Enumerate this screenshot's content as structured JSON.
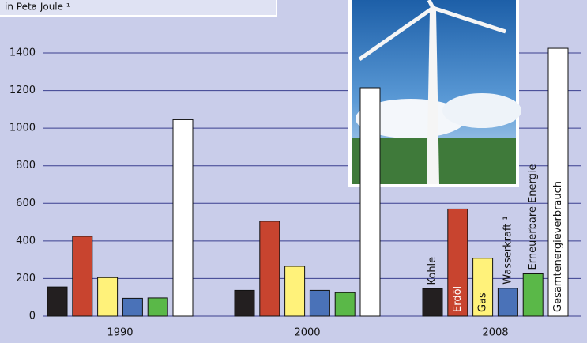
{
  "chart_data": {
    "type": "bar",
    "subtitle": "in Peta Joule ¹",
    "categories": [
      "1990",
      "2000",
      "2008"
    ],
    "series": [
      {
        "name": "Kohle",
        "color": "#231f20",
        "values": [
          155,
          137,
          145
        ]
      },
      {
        "name": "Erdöl",
        "color": "#c8442f",
        "values": [
          425,
          505,
          570
        ]
      },
      {
        "name": "Gas",
        "color": "#fff27a",
        "values": [
          205,
          265,
          308
        ]
      },
      {
        "name": "Wasserkraft ¹",
        "color": "#4a72b8",
        "values": [
          95,
          137,
          148
        ]
      },
      {
        "name": "Erneuerbare Energie",
        "color": "#5ab848",
        "values": [
          97,
          125,
          225
        ]
      },
      {
        "name": "Gesamtenergieverbrauch",
        "color": "#ffffff",
        "values": [
          1045,
          1215,
          1425
        ]
      }
    ],
    "ylim": [
      0,
      1400
    ],
    "yticks": [
      0,
      200,
      400,
      600,
      800,
      1000,
      1200,
      1400
    ],
    "grid": true
  }
}
